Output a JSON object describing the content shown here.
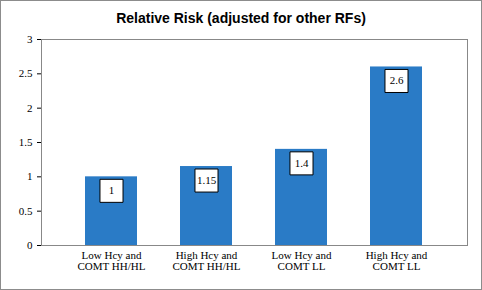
{
  "chart_data": {
    "type": "bar",
    "title": "Relative Risk (adjusted for other RFs)",
    "categories": [
      "Low Hcy and\nCOMT HH/HL",
      "High Hcy and\nCOMT HH/HL",
      "Low Hcy and\nCOMT LL",
      "High Hcy and\nCOMT LL"
    ],
    "values": [
      1,
      1.15,
      1.4,
      2.6
    ],
    "color": "#2a7bc6",
    "ylim": [
      0,
      3
    ],
    "yticks": [
      0,
      0.5,
      1,
      1.5,
      2,
      2.5,
      3
    ],
    "grid": false,
    "data_labels": true
  }
}
